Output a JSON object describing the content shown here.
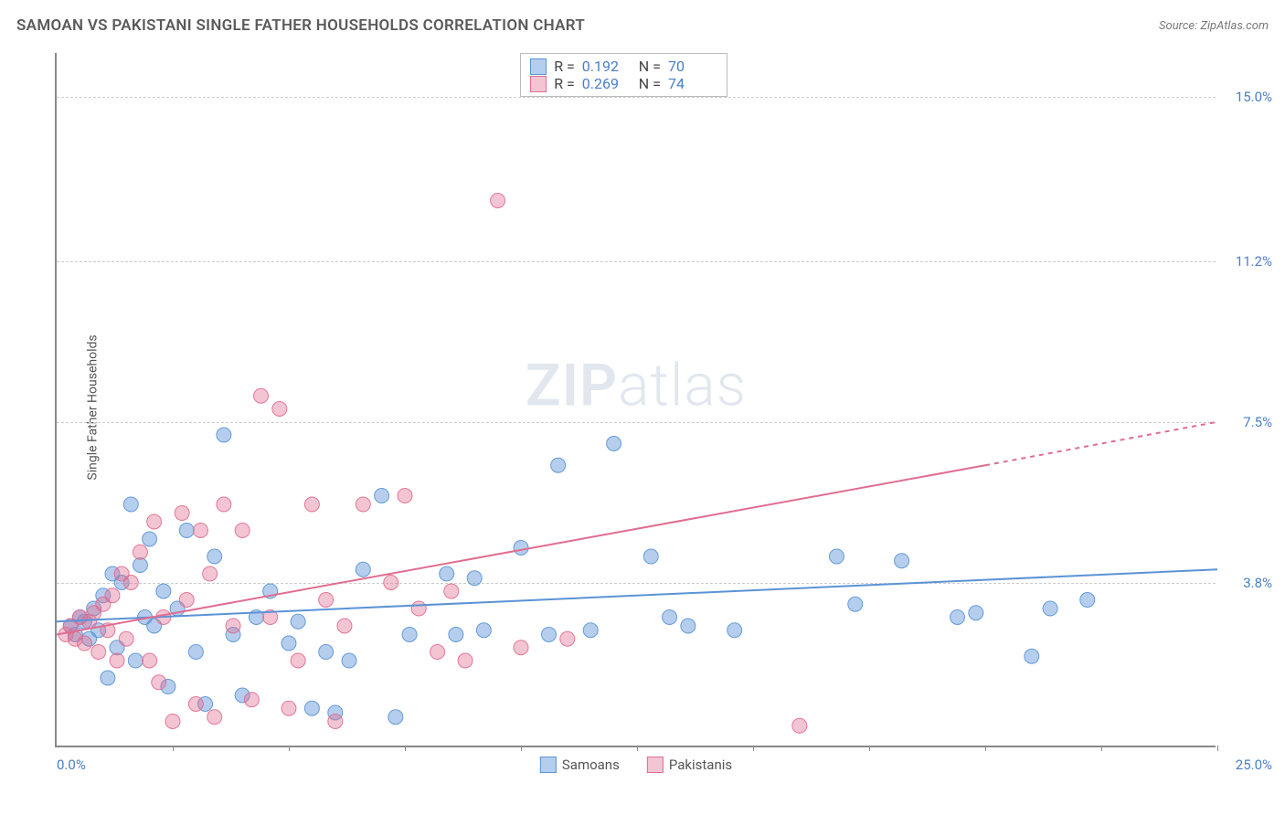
{
  "header": {
    "title": "SAMOAN VS PAKISTANI SINGLE FATHER HOUSEHOLDS CORRELATION CHART",
    "source_label": "Source:",
    "source_name": "ZipAtlas.com"
  },
  "watermark": {
    "zip": "ZIP",
    "atlas": "atlas"
  },
  "chart": {
    "type": "scatter",
    "ylabel": "Single Father Households",
    "xlim": [
      0,
      25
    ],
    "ylim": [
      0,
      16
    ],
    "x_min_label": "0.0%",
    "x_max_label": "25.0%",
    "ytick_labels": [
      "15.0%",
      "11.2%",
      "7.5%",
      "3.8%"
    ],
    "ytick_values": [
      15.0,
      11.2,
      7.5,
      3.8
    ],
    "x_tick_marks": [
      2.5,
      5.0,
      7.5,
      10.0,
      12.5,
      15.0,
      17.5,
      20.0,
      22.5,
      25.0
    ],
    "background_color": "#ffffff",
    "grid_color": "#cccccc",
    "axis_color": "#888888",
    "label_color": "#555555",
    "value_color": "#4a7ec7",
    "marker_radius": 8,
    "marker_opacity": 0.55,
    "marker_stroke_opacity": 0.9,
    "trend_line_width": 2,
    "series": [
      {
        "name": "Samoans",
        "color": "#5a93d6",
        "fill": "rgba(90,147,214,0.45)",
        "R": "0.192",
        "N": "70",
        "trend": {
          "x1": 0,
          "y1": 2.9,
          "x2": 25,
          "y2": 4.1,
          "dashed_from": 25
        },
        "points": [
          [
            0.3,
            2.8
          ],
          [
            0.4,
            2.6
          ],
          [
            0.5,
            3.0
          ],
          [
            0.6,
            2.9
          ],
          [
            0.7,
            2.5
          ],
          [
            0.8,
            3.2
          ],
          [
            0.9,
            2.7
          ],
          [
            1.0,
            3.5
          ],
          [
            1.1,
            1.6
          ],
          [
            1.2,
            4.0
          ],
          [
            1.3,
            2.3
          ],
          [
            1.4,
            3.8
          ],
          [
            1.6,
            5.6
          ],
          [
            1.7,
            2.0
          ],
          [
            1.8,
            4.2
          ],
          [
            1.9,
            3.0
          ],
          [
            2.0,
            4.8
          ],
          [
            2.1,
            2.8
          ],
          [
            2.3,
            3.6
          ],
          [
            2.4,
            1.4
          ],
          [
            2.6,
            3.2
          ],
          [
            2.8,
            5.0
          ],
          [
            3.0,
            2.2
          ],
          [
            3.2,
            1.0
          ],
          [
            3.4,
            4.4
          ],
          [
            3.6,
            7.2
          ],
          [
            3.8,
            2.6
          ],
          [
            4.0,
            1.2
          ],
          [
            4.3,
            3.0
          ],
          [
            4.6,
            3.6
          ],
          [
            5.0,
            2.4
          ],
          [
            5.2,
            2.9
          ],
          [
            5.5,
            0.9
          ],
          [
            5.8,
            2.2
          ],
          [
            6.0,
            0.8
          ],
          [
            6.3,
            2.0
          ],
          [
            6.6,
            4.1
          ],
          [
            7.0,
            5.8
          ],
          [
            7.3,
            0.7
          ],
          [
            7.6,
            2.6
          ],
          [
            8.4,
            4.0
          ],
          [
            8.6,
            2.6
          ],
          [
            9.0,
            3.9
          ],
          [
            9.2,
            2.7
          ],
          [
            10.0,
            4.6
          ],
          [
            10.6,
            2.6
          ],
          [
            10.8,
            6.5
          ],
          [
            11.5,
            2.7
          ],
          [
            12.0,
            7.0
          ],
          [
            12.8,
            4.4
          ],
          [
            13.2,
            3.0
          ],
          [
            13.6,
            2.8
          ],
          [
            14.6,
            2.7
          ],
          [
            16.8,
            4.4
          ],
          [
            17.2,
            3.3
          ],
          [
            18.2,
            4.3
          ],
          [
            19.4,
            3.0
          ],
          [
            19.8,
            3.1
          ],
          [
            21.0,
            2.1
          ],
          [
            21.4,
            3.2
          ],
          [
            22.2,
            3.4
          ]
        ]
      },
      {
        "name": "Pakistanis",
        "color": "#e06d90",
        "fill": "rgba(224,109,144,0.4)",
        "R": "0.269",
        "N": "74",
        "trend": {
          "x1": 0,
          "y1": 2.6,
          "x2": 20,
          "y2": 6.5,
          "dashed_from": 20,
          "dash_to_x": 25,
          "dash_to_y": 7.5
        },
        "points": [
          [
            0.2,
            2.6
          ],
          [
            0.3,
            2.8
          ],
          [
            0.4,
            2.5
          ],
          [
            0.5,
            3.0
          ],
          [
            0.6,
            2.4
          ],
          [
            0.7,
            2.9
          ],
          [
            0.8,
            3.1
          ],
          [
            0.9,
            2.2
          ],
          [
            1.0,
            3.3
          ],
          [
            1.1,
            2.7
          ],
          [
            1.2,
            3.5
          ],
          [
            1.3,
            2.0
          ],
          [
            1.4,
            4.0
          ],
          [
            1.5,
            2.5
          ],
          [
            1.6,
            3.8
          ],
          [
            1.8,
            4.5
          ],
          [
            2.0,
            2.0
          ],
          [
            2.1,
            5.2
          ],
          [
            2.2,
            1.5
          ],
          [
            2.3,
            3.0
          ],
          [
            2.5,
            0.6
          ],
          [
            2.7,
            5.4
          ],
          [
            2.8,
            3.4
          ],
          [
            3.0,
            1.0
          ],
          [
            3.1,
            5.0
          ],
          [
            3.3,
            4.0
          ],
          [
            3.4,
            0.7
          ],
          [
            3.6,
            5.6
          ],
          [
            3.8,
            2.8
          ],
          [
            4.0,
            5.0
          ],
          [
            4.2,
            1.1
          ],
          [
            4.4,
            8.1
          ],
          [
            4.6,
            3.0
          ],
          [
            4.8,
            7.8
          ],
          [
            5.0,
            0.9
          ],
          [
            5.2,
            2.0
          ],
          [
            5.5,
            5.6
          ],
          [
            5.8,
            3.4
          ],
          [
            6.0,
            0.6
          ],
          [
            6.2,
            2.8
          ],
          [
            6.6,
            5.6
          ],
          [
            7.2,
            3.8
          ],
          [
            7.5,
            5.8
          ],
          [
            7.8,
            3.2
          ],
          [
            8.2,
            2.2
          ],
          [
            8.5,
            3.6
          ],
          [
            8.8,
            2.0
          ],
          [
            9.5,
            12.6
          ],
          [
            10.0,
            2.3
          ],
          [
            11.0,
            2.5
          ],
          [
            16.0,
            0.5
          ]
        ]
      }
    ]
  },
  "stats_box": {
    "r_label": "R =",
    "n_label": "N ="
  },
  "legend": {
    "items": [
      "Samoans",
      "Pakistanis"
    ]
  }
}
